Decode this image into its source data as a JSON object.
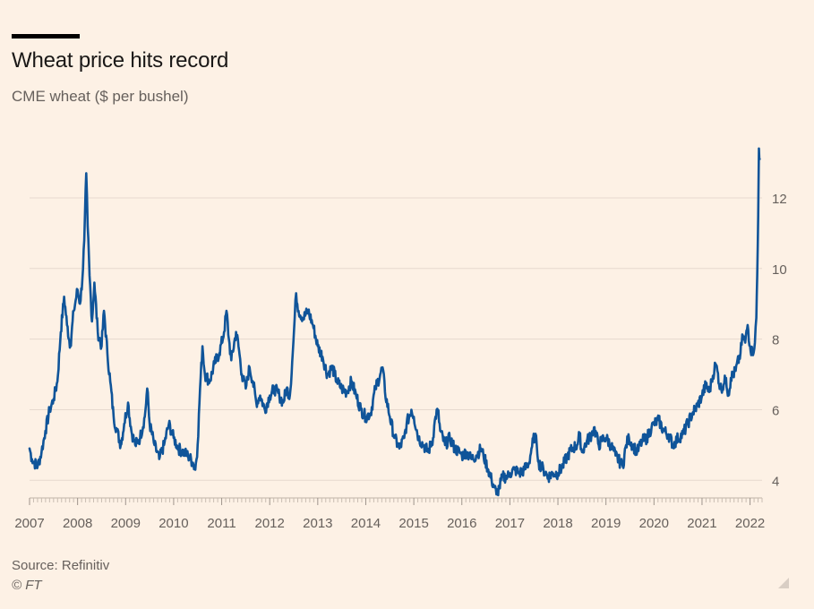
{
  "chart_data": {
    "type": "line",
    "title": "Wheat price hits record",
    "subtitle": "CME wheat ($ per bushel)",
    "ylabel": "$ per bushel",
    "xlabel": "",
    "xlim": [
      2007,
      2022.25
    ],
    "ylim": [
      3.5,
      13.8
    ],
    "x_ticks": [
      2007,
      2008,
      2009,
      2010,
      2011,
      2012,
      2013,
      2014,
      2015,
      2016,
      2017,
      2018,
      2019,
      2020,
      2021,
      2022
    ],
    "y_ticks": [
      4,
      6,
      8,
      10,
      12
    ],
    "grid": true,
    "series": [
      {
        "name": "CME wheat",
        "color": "#0f5499",
        "points": [
          [
            2007.0,
            4.9
          ],
          [
            2007.05,
            4.6
          ],
          [
            2007.1,
            4.5
          ],
          [
            2007.17,
            4.4
          ],
          [
            2007.25,
            4.8
          ],
          [
            2007.33,
            5.4
          ],
          [
            2007.42,
            6.0
          ],
          [
            2007.5,
            6.3
          ],
          [
            2007.58,
            6.8
          ],
          [
            2007.65,
            8.2
          ],
          [
            2007.72,
            9.2
          ],
          [
            2007.78,
            8.4
          ],
          [
            2007.85,
            7.8
          ],
          [
            2007.92,
            8.8
          ],
          [
            2008.0,
            9.4
          ],
          [
            2008.05,
            9.0
          ],
          [
            2008.1,
            9.7
          ],
          [
            2008.14,
            10.8
          ],
          [
            2008.18,
            12.7
          ],
          [
            2008.21,
            11.2
          ],
          [
            2008.25,
            9.8
          ],
          [
            2008.3,
            8.5
          ],
          [
            2008.35,
            9.6
          ],
          [
            2008.42,
            8.2
          ],
          [
            2008.5,
            7.8
          ],
          [
            2008.55,
            8.8
          ],
          [
            2008.62,
            7.6
          ],
          [
            2008.68,
            6.8
          ],
          [
            2008.75,
            5.8
          ],
          [
            2008.82,
            5.4
          ],
          [
            2008.9,
            5.0
          ],
          [
            2008.97,
            5.6
          ],
          [
            2009.05,
            6.2
          ],
          [
            2009.12,
            5.4
          ],
          [
            2009.2,
            5.0
          ],
          [
            2009.3,
            5.2
          ],
          [
            2009.4,
            5.8
          ],
          [
            2009.45,
            6.6
          ],
          [
            2009.5,
            5.6
          ],
          [
            2009.6,
            5.0
          ],
          [
            2009.7,
            4.6
          ],
          [
            2009.8,
            5.0
          ],
          [
            2009.9,
            5.6
          ],
          [
            2009.95,
            5.4
          ],
          [
            2010.0,
            5.2
          ],
          [
            2010.1,
            4.9
          ],
          [
            2010.2,
            4.8
          ],
          [
            2010.3,
            4.7
          ],
          [
            2010.4,
            4.5
          ],
          [
            2010.45,
            4.3
          ],
          [
            2010.5,
            5.0
          ],
          [
            2010.55,
            6.6
          ],
          [
            2010.6,
            7.8
          ],
          [
            2010.65,
            7.0
          ],
          [
            2010.75,
            6.8
          ],
          [
            2010.85,
            7.3
          ],
          [
            2010.95,
            7.6
          ],
          [
            2011.05,
            8.2
          ],
          [
            2011.1,
            8.8
          ],
          [
            2011.15,
            8.0
          ],
          [
            2011.2,
            7.4
          ],
          [
            2011.3,
            8.2
          ],
          [
            2011.35,
            7.8
          ],
          [
            2011.42,
            7.0
          ],
          [
            2011.5,
            6.6
          ],
          [
            2011.58,
            7.2
          ],
          [
            2011.65,
            6.8
          ],
          [
            2011.72,
            6.2
          ],
          [
            2011.8,
            6.4
          ],
          [
            2011.9,
            6.0
          ],
          [
            2012.0,
            6.4
          ],
          [
            2012.1,
            6.6
          ],
          [
            2012.2,
            6.4
          ],
          [
            2012.28,
            6.2
          ],
          [
            2012.35,
            6.6
          ],
          [
            2012.42,
            6.4
          ],
          [
            2012.48,
            7.6
          ],
          [
            2012.52,
            8.6
          ],
          [
            2012.55,
            9.3
          ],
          [
            2012.6,
            8.8
          ],
          [
            2012.7,
            8.6
          ],
          [
            2012.8,
            8.8
          ],
          [
            2012.9,
            8.4
          ],
          [
            2013.0,
            7.8
          ],
          [
            2013.1,
            7.5
          ],
          [
            2013.2,
            7.0
          ],
          [
            2013.3,
            7.2
          ],
          [
            2013.4,
            6.8
          ],
          [
            2013.5,
            6.6
          ],
          [
            2013.6,
            6.5
          ],
          [
            2013.7,
            6.8
          ],
          [
            2013.8,
            6.4
          ],
          [
            2013.9,
            6.0
          ],
          [
            2014.0,
            5.8
          ],
          [
            2014.1,
            5.9
          ],
          [
            2014.2,
            6.6
          ],
          [
            2014.3,
            7.0
          ],
          [
            2014.35,
            7.2
          ],
          [
            2014.4,
            6.5
          ],
          [
            2014.5,
            5.8
          ],
          [
            2014.6,
            5.2
          ],
          [
            2014.7,
            4.9
          ],
          [
            2014.8,
            5.2
          ],
          [
            2014.85,
            5.6
          ],
          [
            2014.95,
            6.0
          ],
          [
            2015.0,
            5.8
          ],
          [
            2015.1,
            5.2
          ],
          [
            2015.2,
            5.0
          ],
          [
            2015.3,
            4.8
          ],
          [
            2015.4,
            5.2
          ],
          [
            2015.45,
            5.8
          ],
          [
            2015.5,
            6.0
          ],
          [
            2015.55,
            5.4
          ],
          [
            2015.65,
            5.0
          ],
          [
            2015.75,
            5.2
          ],
          [
            2015.85,
            4.9
          ],
          [
            2015.95,
            4.8
          ],
          [
            2016.0,
            4.7
          ],
          [
            2016.1,
            4.8
          ],
          [
            2016.2,
            4.6
          ],
          [
            2016.3,
            4.7
          ],
          [
            2016.4,
            4.9
          ],
          [
            2016.45,
            4.7
          ],
          [
            2016.55,
            4.3
          ],
          [
            2016.62,
            4.0
          ],
          [
            2016.68,
            3.8
          ],
          [
            2016.72,
            3.6
          ],
          [
            2016.78,
            3.8
          ],
          [
            2016.85,
            4.1
          ],
          [
            2016.95,
            4.1
          ],
          [
            2017.0,
            4.2
          ],
          [
            2017.1,
            4.3
          ],
          [
            2017.2,
            4.2
          ],
          [
            2017.3,
            4.3
          ],
          [
            2017.4,
            4.5
          ],
          [
            2017.45,
            4.9
          ],
          [
            2017.52,
            5.3
          ],
          [
            2017.56,
            5.0
          ],
          [
            2017.6,
            4.5
          ],
          [
            2017.7,
            4.3
          ],
          [
            2017.8,
            4.1
          ],
          [
            2017.9,
            4.2
          ],
          [
            2018.0,
            4.2
          ],
          [
            2018.1,
            4.4
          ],
          [
            2018.2,
            4.7
          ],
          [
            2018.3,
            4.9
          ],
          [
            2018.4,
            5.0
          ],
          [
            2018.45,
            5.3
          ],
          [
            2018.5,
            4.8
          ],
          [
            2018.6,
            5.1
          ],
          [
            2018.7,
            5.3
          ],
          [
            2018.75,
            5.5
          ],
          [
            2018.85,
            5.0
          ],
          [
            2018.95,
            5.2
          ],
          [
            2019.0,
            5.2
          ],
          [
            2019.1,
            5.0
          ],
          [
            2019.2,
            4.7
          ],
          [
            2019.3,
            4.5
          ],
          [
            2019.35,
            4.4
          ],
          [
            2019.42,
            5.0
          ],
          [
            2019.48,
            5.2
          ],
          [
            2019.55,
            5.0
          ],
          [
            2019.65,
            4.8
          ],
          [
            2019.75,
            5.1
          ],
          [
            2019.85,
            5.2
          ],
          [
            2019.95,
            5.5
          ],
          [
            2020.0,
            5.6
          ],
          [
            2020.1,
            5.7
          ],
          [
            2020.2,
            5.4
          ],
          [
            2020.3,
            5.3
          ],
          [
            2020.4,
            5.0
          ],
          [
            2020.5,
            5.2
          ],
          [
            2020.6,
            5.3
          ],
          [
            2020.7,
            5.6
          ],
          [
            2020.8,
            5.9
          ],
          [
            2020.9,
            6.1
          ],
          [
            2021.0,
            6.4
          ],
          [
            2021.08,
            6.7
          ],
          [
            2021.15,
            6.5
          ],
          [
            2021.2,
            6.8
          ],
          [
            2021.28,
            7.3
          ],
          [
            2021.32,
            7.1
          ],
          [
            2021.38,
            6.6
          ],
          [
            2021.45,
            6.7
          ],
          [
            2021.5,
            6.9
          ],
          [
            2021.55,
            6.4
          ],
          [
            2021.6,
            6.9
          ],
          [
            2021.7,
            7.1
          ],
          [
            2021.8,
            7.6
          ],
          [
            2021.85,
            8.1
          ],
          [
            2021.9,
            7.9
          ],
          [
            2021.95,
            8.4
          ],
          [
            2022.0,
            7.8
          ],
          [
            2022.05,
            7.6
          ],
          [
            2022.1,
            7.9
          ],
          [
            2022.13,
            8.6
          ],
          [
            2022.15,
            9.8
          ],
          [
            2022.17,
            11.5
          ],
          [
            2022.185,
            13.4
          ],
          [
            2022.2,
            13.1
          ]
        ]
      }
    ]
  },
  "footer": {
    "source": "Source: Refinitiv",
    "copyright": "© FT"
  },
  "colors": {
    "background": "#fdf1e5",
    "line": "#0f5499",
    "grid": "#e6d9ce",
    "text": "#66605c"
  }
}
